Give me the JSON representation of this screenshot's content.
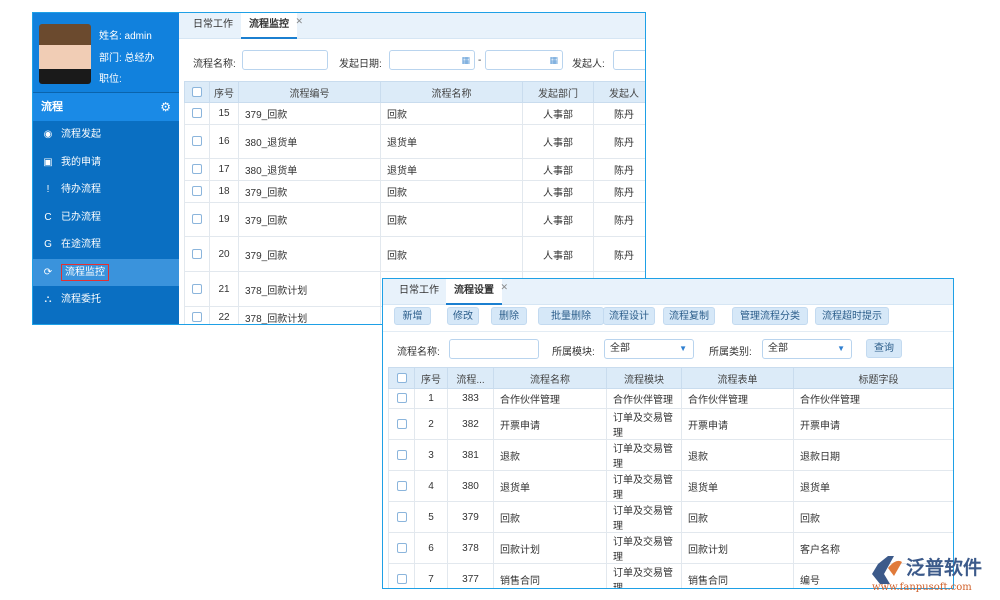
{
  "monitor": {
    "profile": {
      "name": "姓名: admin",
      "dept": "部门: 总经办",
      "position": "职位:"
    },
    "section": "流程",
    "menu": [
      {
        "icon": "broadcast-icon",
        "glyph": "◉",
        "label": "流程发起"
      },
      {
        "icon": "id-card-icon",
        "glyph": "▣",
        "label": "我的申请"
      },
      {
        "icon": "alert-icon",
        "glyph": "!",
        "label": "待办流程"
      },
      {
        "icon": "refresh-c-icon",
        "glyph": "C",
        "label": "已办流程"
      },
      {
        "icon": "google-plus-icon",
        "glyph": "G",
        "label": "在途流程"
      },
      {
        "icon": "sync-icon",
        "glyph": "⟳",
        "label": "流程监控"
      },
      {
        "icon": "sitemap-icon",
        "glyph": "⛬",
        "label": "流程委托"
      }
    ],
    "tabs": [
      "日常工作",
      "流程监控"
    ],
    "filters": {
      "name_label": "流程名称:",
      "date_label": "发起日期:",
      "dash": "-",
      "initiator_label": "发起人:"
    },
    "columns": [
      "序号",
      "流程编号",
      "流程名称",
      "发起部门",
      "发起人"
    ],
    "rows": [
      [
        "15",
        "379_回款",
        "回款",
        "人事部",
        "陈丹"
      ],
      [
        "16",
        "380_退货单",
        "退货单",
        "人事部",
        "陈丹"
      ],
      [
        "17",
        "380_退货单",
        "退货单",
        "人事部",
        "陈丹"
      ],
      [
        "18",
        "379_回款",
        "回款",
        "人事部",
        "陈丹"
      ],
      [
        "19",
        "379_回款",
        "回款",
        "人事部",
        "陈丹"
      ],
      [
        "20",
        "379_回款",
        "回款",
        "人事部",
        "陈丹"
      ],
      [
        "21",
        "378_回款计划",
        "",
        "",
        ""
      ],
      [
        "22",
        "378_回款计划",
        "",
        "",
        ""
      ]
    ]
  },
  "settings": {
    "tabs": [
      "日常工作",
      "流程设置"
    ],
    "buttons": [
      "新增",
      "修改",
      "删除",
      "批量删除",
      "流程设计",
      "流程复制",
      "管理流程分类",
      "流程超时提示"
    ],
    "filters": {
      "name_label": "流程名称:",
      "module_label": "所属模块:",
      "module_value": "全部",
      "category_label": "所属类别:",
      "category_value": "全部",
      "query": "查询"
    },
    "columns": [
      "序号",
      "流程...",
      "流程名称",
      "流程模块",
      "流程表单",
      "标题字段"
    ],
    "rows": [
      [
        "1",
        "383",
        "合作伙伴管理",
        "合作伙伴管理",
        "合作伙伴管理",
        "合作伙伴管理"
      ],
      [
        "2",
        "382",
        "开票申请",
        "订单及交易管理",
        "开票申请",
        "开票申请"
      ],
      [
        "3",
        "381",
        "退款",
        "订单及交易管理",
        "退款",
        "退款日期"
      ],
      [
        "4",
        "380",
        "退货单",
        "订单及交易管理",
        "退货单",
        "退货单"
      ],
      [
        "5",
        "379",
        "回款",
        "订单及交易管理",
        "回款",
        "回款"
      ],
      [
        "6",
        "378",
        "回款计划",
        "订单及交易管理",
        "回款计划",
        "客户名称"
      ],
      [
        "7",
        "377",
        "销售合同",
        "订单及交易管理",
        "销售合同",
        "编号"
      ]
    ]
  },
  "logo": {
    "text": "泛普软件",
    "url": "www.fanpusoft.com"
  }
}
